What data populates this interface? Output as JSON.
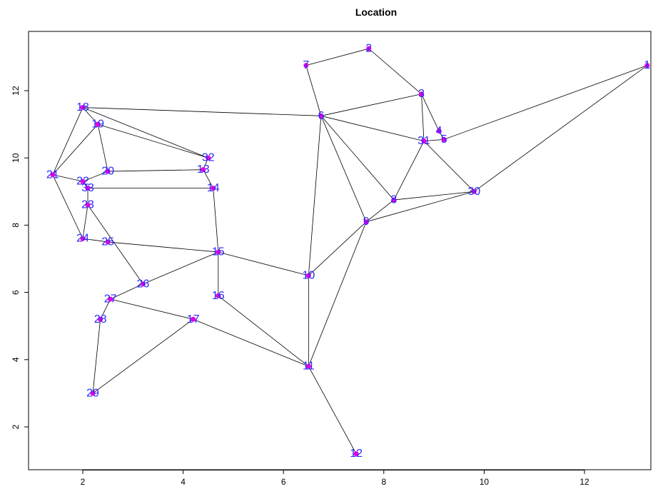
{
  "chart_data": {
    "type": "scatter",
    "title": "Location",
    "xlabel": "",
    "ylabel": "",
    "xlim": [
      1.0,
      13.3
    ],
    "ylim": [
      0.7,
      13.8
    ],
    "xticks": [
      2,
      4,
      6,
      8,
      10,
      12
    ],
    "yticks": [
      2,
      4,
      6,
      8,
      10,
      12
    ],
    "grid": false,
    "colors": {
      "point": "#e000e0",
      "label": "#2a2aff",
      "edge": "#000000"
    },
    "nodes": [
      {
        "id": "1",
        "x": 13.25,
        "y": 12.75
      },
      {
        "id": "2",
        "x": 7.7,
        "y": 13.25
      },
      {
        "id": "3",
        "x": 8.75,
        "y": 11.9
      },
      {
        "id": "4",
        "x": 9.1,
        "y": 10.8
      },
      {
        "id": "5",
        "x": 9.2,
        "y": 10.55
      },
      {
        "id": "6",
        "x": 6.75,
        "y": 11.25
      },
      {
        "id": "7",
        "x": 6.45,
        "y": 12.75
      },
      {
        "id": "8",
        "x": 8.2,
        "y": 8.75
      },
      {
        "id": "9",
        "x": 7.65,
        "y": 8.1
      },
      {
        "id": "10",
        "x": 6.5,
        "y": 6.5
      },
      {
        "id": "11",
        "x": 6.5,
        "y": 3.8
      },
      {
        "id": "12",
        "x": 7.45,
        "y": 1.2
      },
      {
        "id": "13",
        "x": 4.4,
        "y": 9.65
      },
      {
        "id": "14",
        "x": 4.6,
        "y": 9.1
      },
      {
        "id": "15",
        "x": 4.7,
        "y": 7.2
      },
      {
        "id": "16",
        "x": 4.7,
        "y": 5.9
      },
      {
        "id": "17",
        "x": 4.2,
        "y": 5.2
      },
      {
        "id": "18",
        "x": 2.0,
        "y": 11.5
      },
      {
        "id": "19",
        "x": 2.3,
        "y": 11.0
      },
      {
        "id": "20",
        "x": 2.5,
        "y": 9.6
      },
      {
        "id": "21",
        "x": 1.4,
        "y": 9.5
      },
      {
        "id": "22",
        "x": 2.0,
        "y": 9.3
      },
      {
        "id": "23",
        "x": 2.1,
        "y": 8.6
      },
      {
        "id": "24",
        "x": 2.0,
        "y": 7.6
      },
      {
        "id": "25",
        "x": 2.5,
        "y": 7.5
      },
      {
        "id": "26",
        "x": 3.2,
        "y": 6.25
      },
      {
        "id": "27",
        "x": 2.55,
        "y": 5.8
      },
      {
        "id": "28",
        "x": 2.35,
        "y": 5.2
      },
      {
        "id": "29",
        "x": 2.2,
        "y": 3.0
      },
      {
        "id": "30",
        "x": 9.8,
        "y": 9.0
      },
      {
        "id": "31",
        "x": 8.8,
        "y": 10.5
      },
      {
        "id": "32",
        "x": 4.5,
        "y": 10.0
      },
      {
        "id": "33",
        "x": 2.1,
        "y": 9.1
      }
    ],
    "edges": [
      [
        "1",
        "5"
      ],
      [
        "1",
        "30"
      ],
      [
        "2",
        "7"
      ],
      [
        "2",
        "3"
      ],
      [
        "7",
        "6"
      ],
      [
        "3",
        "6"
      ],
      [
        "3",
        "31"
      ],
      [
        "3",
        "4"
      ],
      [
        "4",
        "5"
      ],
      [
        "31",
        "5"
      ],
      [
        "6",
        "31"
      ],
      [
        "6",
        "8"
      ],
      [
        "6",
        "9"
      ],
      [
        "6",
        "10"
      ],
      [
        "6",
        "18"
      ],
      [
        "31",
        "8"
      ],
      [
        "31",
        "30"
      ],
      [
        "8",
        "30"
      ],
      [
        "8",
        "9"
      ],
      [
        "9",
        "30"
      ],
      [
        "9",
        "10"
      ],
      [
        "9",
        "11"
      ],
      [
        "10",
        "11"
      ],
      [
        "10",
        "15"
      ],
      [
        "11",
        "12"
      ],
      [
        "11",
        "16"
      ],
      [
        "11",
        "17"
      ],
      [
        "15",
        "16"
      ],
      [
        "15",
        "14"
      ],
      [
        "15",
        "26"
      ],
      [
        "15",
        "25"
      ],
      [
        "17",
        "27"
      ],
      [
        "17",
        "29"
      ],
      [
        "29",
        "28"
      ],
      [
        "28",
        "27"
      ],
      [
        "27",
        "26"
      ],
      [
        "26",
        "23"
      ],
      [
        "14",
        "13"
      ],
      [
        "14",
        "33"
      ],
      [
        "13",
        "32"
      ],
      [
        "13",
        "20"
      ],
      [
        "32",
        "18"
      ],
      [
        "32",
        "19"
      ],
      [
        "18",
        "19"
      ],
      [
        "18",
        "21"
      ],
      [
        "19",
        "20"
      ],
      [
        "19",
        "21"
      ],
      [
        "20",
        "22"
      ],
      [
        "21",
        "22"
      ],
      [
        "21",
        "24"
      ],
      [
        "22",
        "33"
      ],
      [
        "33",
        "23"
      ],
      [
        "23",
        "24"
      ],
      [
        "24",
        "25"
      ]
    ]
  }
}
